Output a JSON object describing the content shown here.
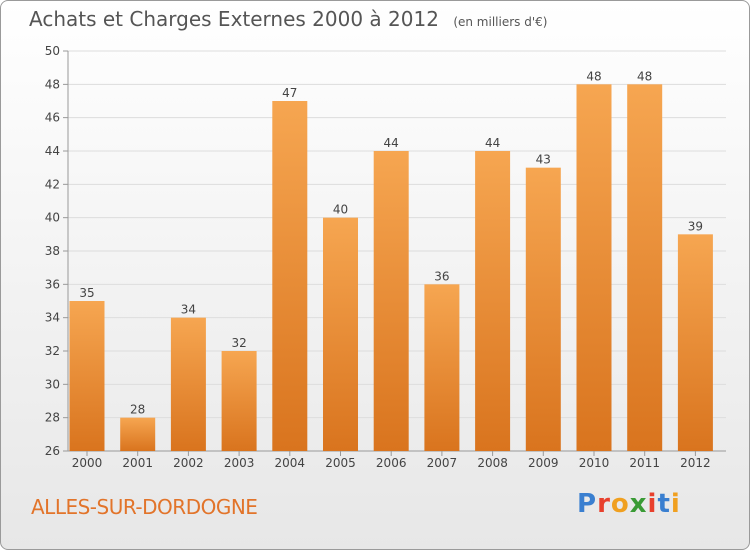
{
  "header": {
    "title": "Achats et Charges Externes 2000 à 2012",
    "subtitle": "(en milliers d'€)"
  },
  "footer": {
    "city": "ALLES-SUR-DORDOGNE",
    "logo": "Proxiti"
  },
  "colors": {
    "bar_light": "#f6a651",
    "bar_dark": "#d9741e",
    "city_text": "#e2742a"
  },
  "chart_data": {
    "type": "bar",
    "categories": [
      "2000",
      "2001",
      "2002",
      "2003",
      "2004",
      "2005",
      "2006",
      "2007",
      "2008",
      "2009",
      "2010",
      "2011",
      "2012"
    ],
    "values": [
      35,
      28,
      34,
      32,
      47,
      40,
      44,
      36,
      44,
      43,
      48,
      48,
      39
    ],
    "title": "Achats et Charges Externes 2000 à 2012",
    "subtitle": "(en milliers d'€)",
    "ylim": [
      26,
      50
    ],
    "yticks": [
      26,
      28,
      30,
      32,
      34,
      36,
      38,
      40,
      42,
      44,
      46,
      48,
      50
    ],
    "grid": true,
    "data_labels": true
  }
}
